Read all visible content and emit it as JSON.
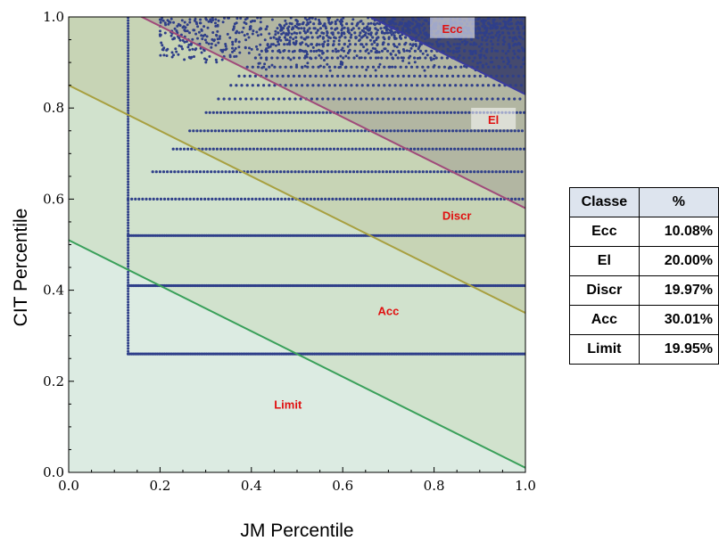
{
  "chart_data": {
    "type": "scatter",
    "xlabel": "JM Percentile",
    "ylabel": "CIT Percentile",
    "xlim": [
      0,
      1
    ],
    "ylim": [
      0,
      1
    ],
    "xticks": [
      "0.0",
      "0.2",
      "0.4",
      "0.6",
      "0.8",
      "1.0"
    ],
    "yticks": [
      "0.0",
      "0.2",
      "0.4",
      "0.6",
      "0.8",
      "1.0"
    ],
    "point_color": "#2f3f8a",
    "x_min_points": 0.13,
    "y_levels": [
      0.26,
      0.41,
      0.52,
      0.6,
      0.66,
      0.71,
      0.75,
      0.79,
      0.82,
      0.85,
      0.87,
      0.89,
      0.91,
      0.925,
      0.94,
      0.955,
      0.965,
      0.975,
      0.985
    ],
    "boundaries": [
      {
        "name": "Limit",
        "color": "#3aa05a",
        "y_at_x0": 0.51,
        "y_at_x1": 0.01
      },
      {
        "name": "Acc",
        "color": "#a8a040",
        "y_at_x0": 0.85,
        "y_at_x1": 0.35
      },
      {
        "name": "Discr",
        "color": "#a04a7a",
        "y_at_x0": 1.08,
        "y_at_x1": 0.58
      },
      {
        "name": "El",
        "color": "#3a3aa0",
        "y_at_x0": 1.33,
        "y_at_x1": 0.83
      }
    ],
    "regions": [
      {
        "label": "Ecc",
        "x": 0.84,
        "y": 0.975,
        "fill": "#454a6e",
        "text_color": "#e01010"
      },
      {
        "label": "El",
        "x": 0.93,
        "y": 0.775,
        "fill": "#b2b6a2",
        "text_color": "#e01010"
      },
      {
        "label": "Discr",
        "x": 0.85,
        "y": 0.565,
        "fill": "#c7d4b5",
        "text_color": "#e01010"
      },
      {
        "label": "Acc",
        "x": 0.7,
        "y": 0.355,
        "fill": "#d1e2cd",
        "text_color": "#e01010"
      },
      {
        "label": "Limit",
        "x": 0.48,
        "y": 0.15,
        "fill": "#dcebe2",
        "text_color": "#e01010"
      }
    ]
  },
  "table": {
    "headers": [
      "Classe",
      "%"
    ],
    "rows": [
      {
        "classe": "Ecc",
        "pct": "10.08%"
      },
      {
        "classe": "El",
        "pct": "20.00%"
      },
      {
        "classe": "Discr",
        "pct": "19.97%"
      },
      {
        "classe": "Acc",
        "pct": "30.01%"
      },
      {
        "classe": "Limit",
        "pct": "19.95%"
      }
    ]
  }
}
